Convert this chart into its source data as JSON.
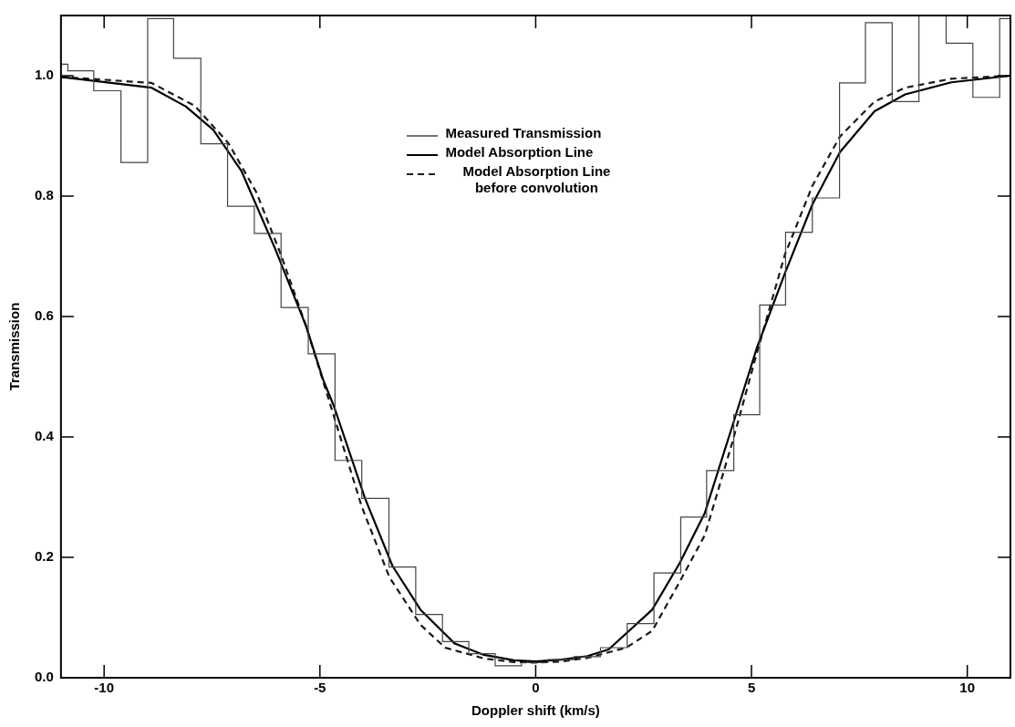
{
  "chart_data": {
    "type": "histogram",
    "xlabel": "Doppler shift (km/s)",
    "ylabel": "Transmission",
    "xlim": [
      -11,
      11
    ],
    "ylim": [
      0,
      1.1
    ],
    "xticks": [
      -10,
      -5,
      {
        "value": 0,
        "label": "0"
      },
      5,
      10
    ],
    "yticks": [
      {
        "value": 0,
        "label": "0.0"
      },
      0.2,
      0.4,
      0.6,
      0.8,
      {
        "value": 1,
        "label": "1.0"
      }
    ],
    "grid": false,
    "legend": "top",
    "bins": [
      -11,
      -10.84,
      -10.24,
      -9.61,
      -8.99,
      -8.39,
      -7.76,
      -7.14,
      -6.52,
      -5.9,
      -5.27,
      -4.65,
      -4.03,
      -3.4,
      -2.78,
      -2.16,
      -1.55,
      -0.94,
      -0.33,
      0.28,
      0.89,
      1.5,
      2.12,
      2.74,
      3.36,
      3.96,
      4.59,
      5.19,
      5.79,
      6.41,
      7.04,
      7.64,
      8.26,
      8.88,
      9.51,
      10.13,
      10.75,
      11
    ],
    "series": [
      {
        "name": "Measured Transmission",
        "type": "histogram",
        "color": "#444444",
        "values": [
          1.019,
          1.008,
          0.975,
          0.856,
          1.095,
          1.029,
          0.887,
          0.783,
          0.738,
          0.615,
          0.538,
          0.361,
          0.298,
          0.184,
          0.105,
          0.06,
          0.04,
          0.02,
          0.025,
          0.03,
          0.035,
          0.05,
          0.09,
          0.174,
          0.267,
          0.344,
          0.437,
          0.619,
          0.74,
          0.797,
          0.988,
          1.088,
          0.957,
          1.1,
          1.054,
          0.964,
          1.095
        ]
      },
      {
        "name": "Model Absorption Line",
        "type": "line",
        "line_style": "solid",
        "color": "#000000",
        "x": [
          -11,
          -8.9,
          -8.11,
          -7.47,
          -6.82,
          -6.04,
          -5.32,
          -4.93,
          -4.67,
          -3.96,
          -3.32,
          -2.67,
          -1.88,
          -1.2,
          -0.5,
          0,
          0.6,
          1.2,
          1.69,
          2.7,
          3.34,
          3.92,
          4.56,
          5.12,
          5.77,
          6.41,
          7.05,
          7.85,
          8.56,
          9.63,
          11
        ],
        "values": [
          0.998,
          0.98,
          0.949,
          0.91,
          0.842,
          0.713,
          0.584,
          0.496,
          0.45,
          0.299,
          0.186,
          0.113,
          0.057,
          0.038,
          0.029,
          0.027,
          0.03,
          0.036,
          0.047,
          0.113,
          0.191,
          0.274,
          0.419,
          0.547,
          0.671,
          0.786,
          0.873,
          0.941,
          0.969,
          0.989,
          1.0
        ]
      },
      {
        "name": "Model Absorption Line before convolution",
        "type": "line",
        "line_style": "dashed",
        "color": "#1a1a1a",
        "x": [
          -11,
          -8.9,
          -7.9,
          -7.12,
          -6.47,
          -5.9,
          -5.32,
          -4.03,
          -3.39,
          -2.67,
          -2.1,
          -1.2,
          -0.5,
          0,
          0.6,
          1.2,
          2.1,
          2.7,
          3.34,
          3.92,
          4.56,
          5.12,
          5.77,
          6.41,
          7.05,
          7.85,
          8.56,
          9.63,
          11
        ],
        "values": [
          0.998,
          0.988,
          0.95,
          0.888,
          0.806,
          0.702,
          0.584,
          0.284,
          0.167,
          0.088,
          0.05,
          0.032,
          0.026,
          0.025,
          0.027,
          0.033,
          0.05,
          0.078,
          0.16,
          0.237,
          0.392,
          0.538,
          0.702,
          0.817,
          0.899,
          0.957,
          0.98,
          0.995,
          1.0
        ]
      }
    ]
  }
}
